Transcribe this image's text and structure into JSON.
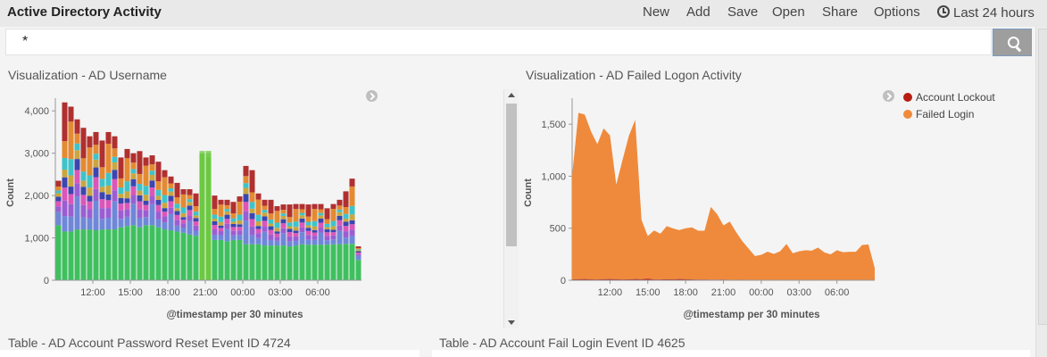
{
  "header": {
    "title": "Active Directory Activity",
    "menu": [
      "New",
      "Add",
      "Save",
      "Open",
      "Share",
      "Options"
    ],
    "time_range": "Last 24 hours",
    "time_icon": "clock-icon"
  },
  "search": {
    "value": "*",
    "button_icon": "search-icon"
  },
  "panels": {
    "username_title": "Visualization - AD Username",
    "failed_logon_title": "Visualization - AD Failed Logon Activity",
    "password_reset_title": "Table - AD Account Password Reset Event ID 4724",
    "fail_login_title": "Table - AD Account Fail Login Event ID 4625"
  },
  "legend": {
    "toggle_icon": "chevron-right-icon",
    "items": [
      {
        "label": "Account Lockout",
        "color": "#b61e12"
      },
      {
        "label": "Failed Login",
        "color": "#ef8a3c"
      }
    ]
  },
  "chart_data": [
    {
      "type": "bar",
      "stacked": true,
      "xlabel": "@timestamp per 30 minutes",
      "ylabel": "Count",
      "ylim": [
        0,
        4300
      ],
      "yticks": [
        0,
        1000,
        2000,
        3000,
        4000
      ],
      "ytick_labels": [
        "0",
        "1,000",
        "2,000",
        "3,000",
        "4,000"
      ],
      "xtick_labels": [
        "12:00",
        "15:00",
        "18:00",
        "21:00",
        "00:00",
        "03:00",
        "06:00"
      ],
      "xtick_bars": [
        6,
        12,
        18,
        24,
        30,
        36,
        42
      ],
      "legend": "hidden",
      "colors": [
        "#3fc05f",
        "#6f87d8",
        "#9a5ed2",
        "#db56b8",
        "#3b46b0",
        "#c9a640",
        "#3ec3c9",
        "#e38a32",
        "#b0302f",
        "#6ac941"
      ],
      "totals": [
        2350,
        4200,
        4100,
        3800,
        3600,
        3400,
        3500,
        3300,
        3500,
        3400,
        2900,
        3100,
        3000,
        3050,
        2900,
        2950,
        2800,
        2600,
        2450,
        2300,
        2150,
        2150,
        2050,
        3050,
        3050,
        2000,
        1900,
        1900,
        1850,
        1980,
        2700,
        2600,
        2050,
        1900,
        1900,
        1750,
        1790,
        1790,
        1800,
        1800,
        1790,
        1800,
        1800,
        1700,
        1800,
        1900,
        2100,
        2400,
        800
      ],
      "base": [
        1300,
        1150,
        1150,
        1200,
        1200,
        1200,
        1180,
        1200,
        1200,
        1200,
        1250,
        1280,
        1300,
        1250,
        1300,
        1300,
        1250,
        1200,
        1180,
        1150,
        1120,
        1080,
        1050,
        3000,
        2900,
        950,
        950,
        920,
        950,
        950,
        850,
        850,
        850,
        820,
        820,
        820,
        820,
        800,
        820,
        850,
        840,
        840,
        840,
        840,
        850,
        850,
        860,
        860,
        480
      ]
    },
    {
      "type": "area",
      "stacked": true,
      "xlabel": "@timestamp per 30 minutes",
      "ylabel": "Count",
      "ylim": [
        0,
        1750
      ],
      "yticks": [
        0,
        500,
        1000,
        1500
      ],
      "ytick_labels": [
        "0",
        "500",
        "1,000",
        "1,500"
      ],
      "xtick_labels": [
        "12:00",
        "15:00",
        "18:00",
        "21:00",
        "00:00",
        "03:00",
        "06:00"
      ],
      "xtick_index": [
        6,
        12,
        18,
        24,
        30,
        36,
        42
      ],
      "series": [
        {
          "name": "Account Lockout",
          "color": "#b61e12",
          "values": [
            8,
            10,
            12,
            9,
            8,
            10,
            12,
            10,
            8,
            9,
            12,
            10,
            15,
            8,
            7,
            10,
            9,
            12,
            10,
            8,
            6,
            6,
            5,
            5,
            6,
            4,
            4,
            5,
            3,
            3,
            4,
            4,
            3,
            4,
            3,
            4,
            3,
            3,
            4,
            4,
            3,
            4,
            3,
            4,
            3,
            3,
            4,
            4,
            3
          ]
        },
        {
          "name": "Failed Login",
          "color": "#ef8a3c",
          "values": [
            1000,
            1600,
            1580,
            1420,
            1300,
            1450,
            1380,
            910,
            1150,
            1380,
            1530,
            570,
            410,
            470,
            440,
            510,
            490,
            470,
            490,
            500,
            470,
            470,
            700,
            630,
            520,
            560,
            460,
            370,
            300,
            230,
            240,
            270,
            250,
            275,
            345,
            255,
            275,
            285,
            280,
            310,
            265,
            245,
            285,
            265,
            270,
            270,
            335,
            340,
            115
          ]
        }
      ]
    }
  ]
}
